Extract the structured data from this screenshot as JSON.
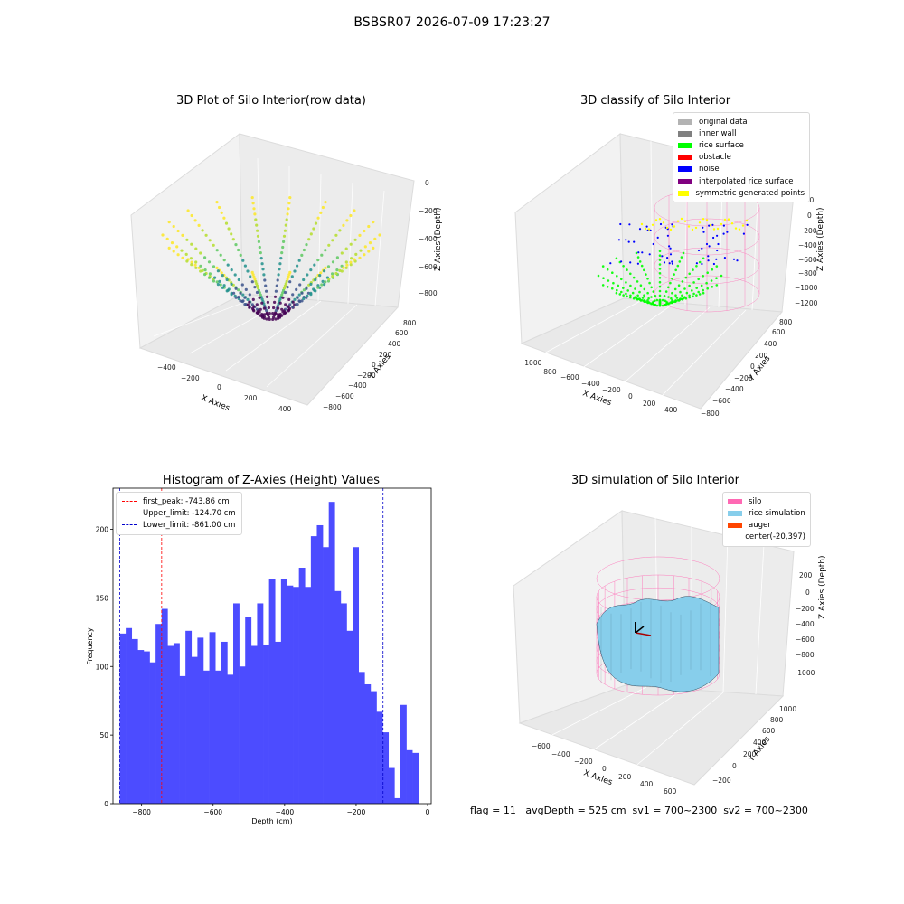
{
  "suptitle": "BSBSR07 2026-07-09 17:23:27",
  "footer": "flag = 11   avgDepth = 525 cm  sv1 = 700~2300  sv2 = 700~2300",
  "colors": {
    "histogram_bar": "#4c4cff",
    "first_peak_line": "#ff0000",
    "limit_line": "#0000cc",
    "silo": "#ff69b4",
    "rice_simulation": "#87ceeb",
    "auger": "#ff4500",
    "rice_surface": "#00ff00",
    "noise": "#0000ff",
    "symmetric": "#ffff00"
  },
  "plot1": {
    "title": "3D Plot of Silo Interior(row data)",
    "xlabel": "X Axies",
    "ylabel": "Y Axies",
    "zlabel": "Z Axies (Depth)",
    "xticks": [
      "−400",
      "−200",
      "0",
      "200",
      "400"
    ],
    "yticks": [
      "−800",
      "−600",
      "−400",
      "−200",
      "0",
      "200",
      "400",
      "600",
      "800"
    ],
    "zticks": [
      "0",
      "−200",
      "−400",
      "−600",
      "−800"
    ]
  },
  "plot2": {
    "title": "3D classify of Silo Interior",
    "xlabel": "X Axies",
    "ylabel": "Y Axies",
    "zlabel": "Z Axies (Depth)",
    "xticks": [
      "−1000",
      "−800",
      "−600",
      "−400",
      "−200",
      "0",
      "200",
      "400"
    ],
    "yticks": [
      "−800",
      "−600",
      "−400",
      "−200",
      "0",
      "200",
      "400",
      "600",
      "800"
    ],
    "zticks": [
      "200",
      "0",
      "−200",
      "−400",
      "−600",
      "−800",
      "−1000",
      "−1200"
    ],
    "legend": [
      {
        "label": "original data",
        "color": "#b3b3b3"
      },
      {
        "label": "inner wall",
        "color": "#808080"
      },
      {
        "label": "rice surface",
        "color": "#00ff00"
      },
      {
        "label": "obstacle",
        "color": "#ff0000"
      },
      {
        "label": "noise",
        "color": "#0000ff"
      },
      {
        "label": "interpolated rice surface",
        "color": "#800080"
      },
      {
        "label": "symmetric generated points",
        "color": "#ffff00"
      }
    ]
  },
  "plot4": {
    "title": "3D simulation of Silo Interior",
    "xlabel": "X Axies",
    "ylabel": "Y Axies",
    "zlabel": "Z Axies (Depth)",
    "xticks": [
      "−600",
      "−400",
      "−200",
      "0",
      "200",
      "400",
      "600"
    ],
    "yticks": [
      "−200",
      "0",
      "200",
      "400",
      "600",
      "800",
      "1000"
    ],
    "zticks": [
      "200",
      "0",
      "−200",
      "−400",
      "−600",
      "−800",
      "−1000"
    ],
    "legend": [
      {
        "label": "silo",
        "color": "#ff69b4",
        "swatch": true
      },
      {
        "label": "rice simulation",
        "color": "#87ceeb",
        "swatch": true
      },
      {
        "label": "auger",
        "color": "#ff4500",
        "swatch": true
      },
      {
        "label": "center(-20,397)",
        "color": "",
        "swatch": false
      }
    ]
  },
  "chart_data": [
    {
      "type": "bar",
      "title": "Histogram of Z-Axies (Height) Values",
      "xlabel": "Depth (cm)",
      "ylabel": "Frequency",
      "xlim": [
        -880,
        10
      ],
      "ylim": [
        0,
        230
      ],
      "xticks": [
        -800,
        -600,
        -400,
        -200,
        0
      ],
      "xtick_labels": [
        "−800",
        "−600",
        "−400",
        "−200",
        "0"
      ],
      "yticks": [
        0,
        50,
        100,
        150,
        200
      ],
      "bin_start": -861,
      "bin_width": 16.7,
      "values": [
        124,
        128,
        120,
        112,
        111,
        103,
        131,
        142,
        115,
        117,
        93,
        126,
        107,
        121,
        97,
        125,
        97,
        118,
        94,
        146,
        100,
        136,
        115,
        146,
        116,
        164,
        118,
        164,
        159,
        158,
        172,
        158,
        195,
        203,
        187,
        220,
        155,
        146,
        126,
        187,
        96,
        87,
        82,
        67,
        52,
        26,
        4,
        72,
        39,
        37
      ],
      "lines": [
        {
          "label": "first_peak: -743.86 cm",
          "x": -743.86,
          "color": "#ff0000"
        },
        {
          "label": "Upper_limit: -124.70 cm",
          "x": -124.7,
          "color": "#0000cc"
        },
        {
          "label": "Lower_limit: -861.00 cm",
          "x": -861.0,
          "color": "#0000cc"
        }
      ],
      "legend_position": "top-left"
    },
    {
      "type": "scatter",
      "title": "3D Plot of Silo Interior(row data)",
      "note_values": "3D point cloud of silo interior depth scan"
    }
  ]
}
